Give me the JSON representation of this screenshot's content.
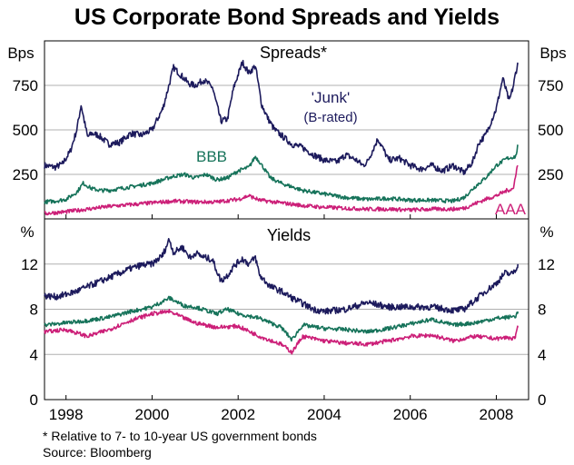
{
  "title": "US Corporate Bond Spreads and Yields",
  "footnote": "* Relative to 7- to 10-year US government bonds",
  "source": "Source: Bloomberg",
  "colors": {
    "junk": "#1c1a5c",
    "bbb": "#16735a",
    "aaa": "#cc1f78",
    "grid": "#b0b0b0",
    "axis": "#000000"
  },
  "x_axis": {
    "range": [
      1997.5,
      2008.75
    ],
    "ticks": [
      1998,
      2000,
      2002,
      2004,
      2006,
      2008
    ],
    "tick_labels": [
      "1998",
      "2000",
      "2002",
      "2004",
      "2006",
      "2008"
    ]
  },
  "chart_data": [
    {
      "type": "line",
      "title": "Spreads*",
      "ylabel": "Bps",
      "ylim": [
        0,
        1000
      ],
      "yticks": [
        250,
        500,
        750
      ],
      "grid": true,
      "series": [
        {
          "name": "'Junk'",
          "sublabel": "(B-rated)",
          "color_key": "junk",
          "x": [
            1997.5,
            1997.75,
            1997.92,
            1998.1,
            1998.25,
            1998.35,
            1998.5,
            1998.6,
            1998.75,
            1999.0,
            1999.25,
            1999.5,
            1999.75,
            2000.0,
            2000.25,
            2000.5,
            2000.7,
            2000.85,
            2001.0,
            2001.2,
            2001.4,
            2001.6,
            2001.75,
            2001.9,
            2002.1,
            2002.25,
            2002.4,
            2002.55,
            2002.7,
            2002.85,
            2003.0,
            2003.25,
            2003.5,
            2003.75,
            2004.0,
            2004.3,
            2004.5,
            2004.75,
            2004.9,
            2005.0,
            2005.25,
            2005.5,
            2005.75,
            2006.0,
            2006.25,
            2006.5,
            2006.75,
            2007.0,
            2007.25,
            2007.45,
            2007.6,
            2007.75,
            2007.9,
            2008.0,
            2008.15,
            2008.3,
            2008.4,
            2008.45,
            2008.5
          ],
          "y": [
            300,
            290,
            310,
            380,
            500,
            640,
            460,
            480,
            470,
            420,
            430,
            480,
            470,
            500,
            620,
            850,
            800,
            760,
            750,
            780,
            740,
            550,
            560,
            740,
            880,
            820,
            860,
            640,
            560,
            500,
            470,
            420,
            400,
            360,
            330,
            320,
            360,
            330,
            300,
            320,
            450,
            330,
            340,
            300,
            280,
            300,
            270,
            300,
            260,
            320,
            430,
            470,
            560,
            620,
            790,
            660,
            750,
            820,
            870
          ]
        },
        {
          "name": "BBB",
          "color_key": "bbb",
          "x": [
            1997.5,
            1997.75,
            1998.0,
            1998.25,
            1998.4,
            1998.6,
            1998.8,
            1999.0,
            1999.5,
            2000.0,
            2000.5,
            2000.75,
            2001.0,
            2001.25,
            2001.5,
            2001.75,
            2002.0,
            2002.25,
            2002.4,
            2002.5,
            2002.75,
            2003.0,
            2003.5,
            2004.0,
            2004.5,
            2005.0,
            2005.5,
            2006.0,
            2006.5,
            2007.0,
            2007.25,
            2007.5,
            2007.75,
            2008.0,
            2008.25,
            2008.45,
            2008.5
          ],
          "y": [
            95,
            100,
            110,
            150,
            200,
            170,
            160,
            160,
            180,
            200,
            240,
            250,
            230,
            250,
            220,
            230,
            270,
            290,
            350,
            320,
            230,
            200,
            160,
            140,
            120,
            110,
            115,
            105,
            105,
            100,
            120,
            180,
            230,
            300,
            340,
            350,
            410
          ]
        },
        {
          "name": "AAA",
          "color_key": "aaa",
          "x": [
            1997.5,
            1998.0,
            1998.5,
            1999.0,
            1999.5,
            2000.0,
            2000.5,
            2001.0,
            2001.5,
            2002.0,
            2002.25,
            2002.5,
            2003.0,
            2003.5,
            2004.0,
            2004.5,
            2005.0,
            2005.5,
            2006.0,
            2006.5,
            2007.0,
            2007.25,
            2007.5,
            2007.75,
            2008.0,
            2008.25,
            2008.4,
            2008.47,
            2008.5
          ],
          "y": [
            30,
            40,
            55,
            70,
            80,
            90,
            100,
            95,
            95,
            110,
            130,
            105,
            90,
            75,
            65,
            60,
            55,
            55,
            50,
            55,
            55,
            60,
            85,
            110,
            130,
            160,
            170,
            280,
            300
          ]
        }
      ]
    },
    {
      "type": "line",
      "title": "Yields",
      "ylabel": "%",
      "ylim": [
        0,
        16
      ],
      "yticks": [
        0,
        4,
        8,
        12
      ],
      "grid": true,
      "series": [
        {
          "name": "'Junk'",
          "color_key": "junk",
          "x": [
            1997.5,
            1997.75,
            1998.0,
            1998.25,
            1998.5,
            1998.75,
            1999.0,
            1999.25,
            1999.5,
            1999.75,
            2000.0,
            2000.25,
            2000.4,
            2000.5,
            2000.7,
            2000.9,
            2001.0,
            2001.2,
            2001.4,
            2001.6,
            2001.75,
            2001.9,
            2002.1,
            2002.25,
            2002.4,
            2002.5,
            2002.75,
            2003.0,
            2003.25,
            2003.5,
            2003.75,
            2004.0,
            2004.5,
            2005.0,
            2005.5,
            2006.0,
            2006.5,
            2007.0,
            2007.25,
            2007.5,
            2007.75,
            2008.0,
            2008.2,
            2008.35,
            2008.45,
            2008.5
          ],
          "y": [
            9.2,
            9.1,
            9.3,
            9.6,
            10.0,
            10.4,
            10.8,
            11.2,
            11.6,
            11.9,
            12.0,
            12.8,
            14.2,
            13.0,
            13.5,
            12.5,
            13.0,
            12.6,
            12.4,
            10.5,
            11.0,
            11.8,
            12.5,
            12.0,
            12.6,
            11.0,
            10.0,
            9.6,
            9.0,
            8.5,
            8.0,
            7.8,
            8.0,
            8.6,
            8.2,
            8.2,
            8.2,
            7.9,
            8.0,
            8.8,
            9.6,
            10.3,
            11.2,
            11.1,
            11.5,
            12.0
          ]
        },
        {
          "name": "BBB",
          "color_key": "bbb",
          "x": [
            1997.5,
            1998.0,
            1998.5,
            1999.0,
            1999.5,
            2000.0,
            2000.4,
            2000.75,
            2001.0,
            2001.5,
            2001.75,
            2002.0,
            2002.5,
            2003.0,
            2003.25,
            2003.5,
            2004.0,
            2004.5,
            2005.0,
            2005.5,
            2006.0,
            2006.5,
            2007.0,
            2007.5,
            2008.0,
            2008.3,
            2008.45,
            2008.5
          ],
          "y": [
            6.6,
            6.8,
            7.0,
            7.3,
            7.8,
            8.2,
            9.0,
            8.3,
            8.2,
            7.6,
            8.0,
            7.6,
            7.2,
            6.4,
            5.3,
            6.6,
            6.3,
            6.2,
            6.0,
            6.3,
            6.7,
            7.1,
            6.6,
            6.8,
            7.2,
            7.3,
            7.4,
            7.8
          ]
        },
        {
          "name": "AAA",
          "color_key": "aaa",
          "x": [
            1997.5,
            1998.0,
            1998.5,
            1999.0,
            1999.5,
            2000.0,
            2000.4,
            2000.75,
            2001.0,
            2001.5,
            2002.0,
            2002.5,
            2003.0,
            2003.25,
            2003.5,
            2004.0,
            2004.5,
            2005.0,
            2005.5,
            2006.0,
            2006.5,
            2007.0,
            2007.5,
            2008.0,
            2008.25,
            2008.4,
            2008.45,
            2008.5
          ],
          "y": [
            6.0,
            6.2,
            5.6,
            6.2,
            7.0,
            7.6,
            7.8,
            7.2,
            6.8,
            6.4,
            6.5,
            5.6,
            4.9,
            4.2,
            5.6,
            5.2,
            5.0,
            4.9,
            5.2,
            5.6,
            5.7,
            5.2,
            5.6,
            5.4,
            5.5,
            5.4,
            5.6,
            6.4
          ]
        }
      ]
    }
  ]
}
